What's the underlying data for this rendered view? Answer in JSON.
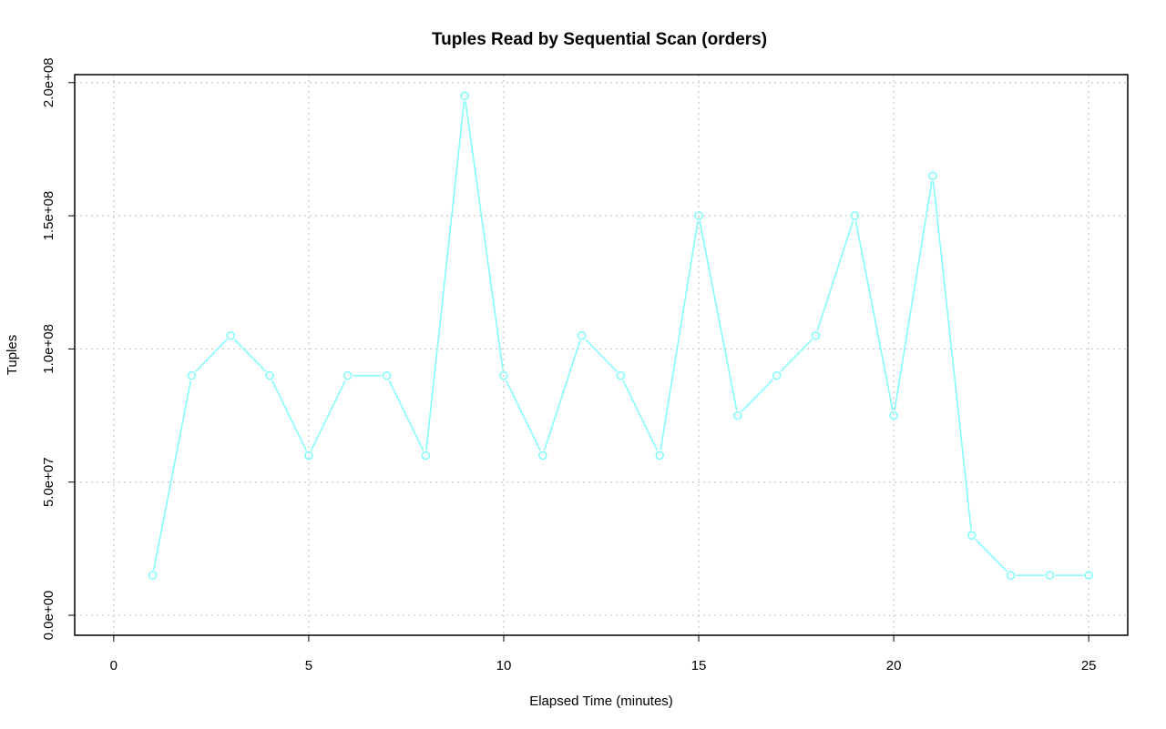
{
  "chart_data": {
    "type": "line",
    "title": "Tuples Read by Sequential Scan (orders)",
    "xlabel": "Elapsed Time (minutes)",
    "ylabel": "Tuples",
    "xlim": [
      -1,
      26
    ],
    "ylim": [
      -7500000,
      203000000
    ],
    "x_ticks": [
      0,
      5,
      10,
      15,
      20,
      25
    ],
    "x_tick_labels": [
      "0",
      "5",
      "10",
      "15",
      "20",
      "25"
    ],
    "y_ticks": [
      0,
      50000000,
      100000000,
      150000000,
      200000000
    ],
    "y_tick_labels": [
      "0.0e+00",
      "5.0e+07",
      "1.0e+08",
      "1.5e+08",
      "2.0e+08"
    ],
    "grid": true,
    "series": [
      {
        "color": "#7ffcfc",
        "marker": "open-circle",
        "x": [
          1,
          2,
          3,
          4,
          5,
          6,
          7,
          8,
          9,
          10,
          11,
          12,
          13,
          14,
          15,
          16,
          17,
          18,
          19,
          20,
          21,
          22,
          23,
          24,
          25
        ],
        "y": [
          15000000,
          90000000,
          105000000,
          90000000,
          60000000,
          90000000,
          90000000,
          60000000,
          195000000,
          90000000,
          60000000,
          105000000,
          90000000,
          60000000,
          150000000,
          75000000,
          90000000,
          105000000,
          150000000,
          75000000,
          165000000,
          30000000,
          15000000,
          15000000,
          15000000
        ]
      }
    ]
  }
}
